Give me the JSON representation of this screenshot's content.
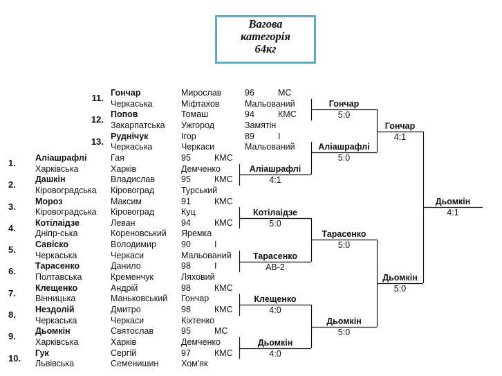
{
  "title": {
    "line1": "Вагова",
    "line2": "категорія",
    "line3": "64кг"
  },
  "participants": [
    {
      "num": "11.",
      "surname": "Гончар",
      "region": "Черкаська",
      "first_name": "Мирослав",
      "city": "Міфтахов",
      "year": "96",
      "rank": "МС",
      "coach": "Мальований"
    },
    {
      "num": "12.",
      "surname": "Попов",
      "region": "Закарпатська",
      "first_name": "Томаш",
      "city": "Ужгород",
      "year": "94",
      "rank": "КМС",
      "coach": "Замятін"
    },
    {
      "num": "13.",
      "surname": "Руднічук",
      "region": "Черкаська",
      "first_name": "Ігор",
      "city": "Черкаси",
      "year": "89",
      "rank": "І",
      "coach": "Мальований"
    },
    {
      "num": "1.",
      "surname": "Аліашрафлі",
      "region": "Харківська",
      "first_name": "Гая",
      "city": "Харків",
      "year": "95",
      "rank": "КМС",
      "coach": "Демченко"
    },
    {
      "num": "2.",
      "surname": "Дашкін",
      "region": "Кіровоградська",
      "first_name": "Владислав",
      "city": "Кіровоград",
      "year": "95",
      "rank": "КМС",
      "coach": "Турський"
    },
    {
      "num": "3.",
      "surname": "Мороз",
      "region": "Кіровоградська",
      "first_name": "Максим",
      "city": "Кіровоград",
      "year": "91",
      "rank": "КМС",
      "coach": "Куц"
    },
    {
      "num": "4.",
      "surname": "Котілаідзе",
      "region": "Дніпр-ська",
      "first_name": "Леван",
      "city": "Кореновський",
      "year": "94",
      "rank": "КМС",
      "coach": "Яремка"
    },
    {
      "num": "5.",
      "surname": "Савіско",
      "region": "Черкаська",
      "first_name": "Володимир",
      "city": "Черкаси",
      "year": "90",
      "rank": "І",
      "coach": "Мальований"
    },
    {
      "num": "6.",
      "surname": "Тарасенко",
      "region": "Полтавська",
      "first_name": "Данило",
      "city": "Кременчук",
      "year": "98",
      "rank": "І",
      "coach": "Ляховий"
    },
    {
      "num": "7.",
      "surname": "Клещенко",
      "region": "Вінницька",
      "first_name": "Андрій",
      "city": "Маньковський",
      "year": "98",
      "rank": "КМС",
      "coach": "Гончар"
    },
    {
      "num": "8.",
      "surname": "Нездолій",
      "region": "Черкаська",
      "first_name": "Дмитро",
      "city": "Черкаси",
      "year": "98",
      "rank": "КМС",
      "coach": "Кіхтенко"
    },
    {
      "num": "9.",
      "surname": "Дьомкін",
      "region": "Харківська",
      "first_name": "Святослав",
      "city": "Харків",
      "year": "95",
      "rank": "МС",
      "coach": "Демченко"
    },
    {
      "num": "10.",
      "surname": "Гук",
      "region": "Львівська",
      "first_name": "Сергій",
      "city": "Семенишин",
      "year": "97",
      "rank": "КМС",
      "coach": "Хом'як"
    }
  ],
  "bouts": [
    {
      "winner": "Аліашрафлі",
      "score": "4:1"
    },
    {
      "winner": "Котілаідзе",
      "score": "5:0"
    },
    {
      "winner": "Тарасенко",
      "score": "АВ-2"
    },
    {
      "winner": "Клещенко",
      "score": "4:0"
    },
    {
      "winner": "Дьомкін",
      "score": "4:0"
    },
    {
      "winner": "Гончар",
      "score": "5:0"
    },
    {
      "winner": "Аліашрафлі",
      "score": "5:0"
    },
    {
      "winner": "Тарасенко",
      "score": "5:0"
    },
    {
      "winner": "Дьомкін",
      "score": "5:0"
    },
    {
      "winner": "Гончар",
      "score": "4:1"
    },
    {
      "winner": "Дьомкін",
      "score": "5:0"
    },
    {
      "winner": "Дьомкін",
      "score": "4:1"
    }
  ]
}
